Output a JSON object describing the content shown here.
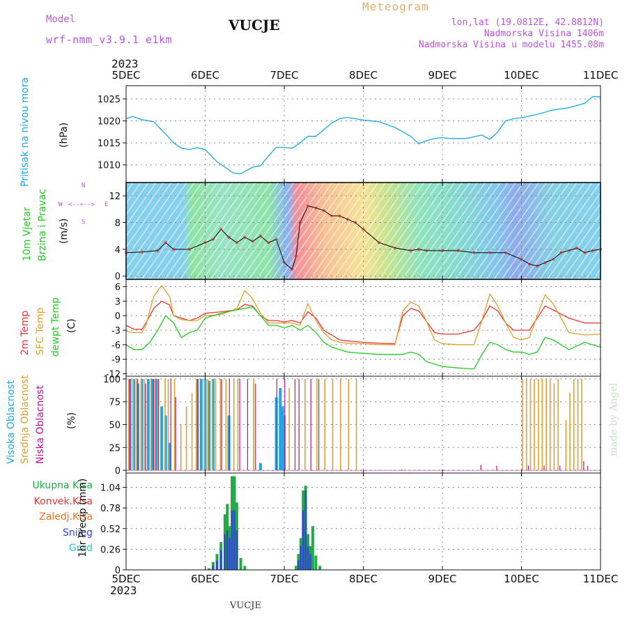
{
  "header": {
    "model_label": "Model",
    "model_name": "wrf-nmm_v3.9.1 e1km",
    "station": "VUCJE",
    "chart_title": "Meteogram",
    "coords": "lon,lat (19.0812E, 42.8812N)",
    "altitude": "Nadmorska Visina 1406m",
    "model_altitude": "Nadmorska Visina u modelu 1455.08m",
    "year_top": "2023",
    "year_bottom": "2023",
    "footer_station": "VUCJE",
    "credit": "made by Angel"
  },
  "colors": {
    "pressure": "#1ea8e6",
    "wind_speed": "#000000",
    "temp2m": "#ee3333",
    "sfc_temp": "#e0a030",
    "dewpoint": "#22cc22",
    "cloud_high": "#1ea8e6",
    "cloud_mid": "#e0a030",
    "cloud_low": "#bb1199",
    "total_precip": "#22aa44",
    "convective": "#ee3333",
    "freezing": "#f07020",
    "snow": "#3344dd",
    "hail": "#22cccc",
    "magenta_text": "#bb55dd",
    "orange_text": "#e0b070"
  },
  "x_axis": {
    "labels": [
      "5DEC",
      "6DEC",
      "7DEC",
      "8DEC",
      "9DEC",
      "10DEC",
      "11DEC"
    ]
  },
  "chart_data": [
    {
      "id": "pressure",
      "type": "line",
      "ylabel": "Pritisak na nivou mora",
      "unit": "(hPa)",
      "ylim": [
        1006,
        1028
      ],
      "yticks": [
        1010,
        1015,
        1020,
        1025
      ],
      "grid": true,
      "series": [
        {
          "x": [
            0,
            0.08,
            0.2,
            0.35,
            0.5,
            0.6,
            0.7,
            0.8,
            0.9,
            1.0,
            1.08,
            1.15,
            1.25,
            1.35,
            1.45,
            1.5,
            1.6,
            1.7,
            1.8,
            1.9,
            2.0,
            2.1,
            2.2,
            2.3,
            2.4,
            2.5,
            2.6,
            2.7,
            2.8,
            2.9,
            3.0,
            3.2,
            3.4,
            3.6,
            3.7,
            3.8,
            3.9,
            4.0,
            4.1,
            4.3,
            4.5,
            4.6,
            4.7,
            4.8,
            4.9,
            5.0,
            5.2,
            5.4,
            5.6,
            5.8,
            5.9,
            6.0
          ],
          "y": [
            1020.5,
            1021,
            1020.3,
            1019.8,
            1017,
            1015,
            1013.8,
            1013.5,
            1013.9,
            1013.5,
            1012,
            1010.7,
            1009.5,
            1008.2,
            1008,
            1008.5,
            1009.5,
            1009.8,
            1012,
            1014,
            1014,
            1013.8,
            1015,
            1016.5,
            1016.5,
            1018,
            1019.5,
            1020.5,
            1020.8,
            1020.5,
            1020.2,
            1019.8,
            1018.5,
            1016.5,
            1014.8,
            1015.5,
            1016,
            1016.2,
            1016,
            1016,
            1016.8,
            1015.8,
            1017.5,
            1020,
            1020.5,
            1020.7,
            1021.5,
            1022.5,
            1023,
            1024,
            1025.5,
            1025.5
          ]
        }
      ]
    },
    {
      "id": "wind",
      "type": "line",
      "ylabel": "10m Vjetar Brzina i Pravac",
      "unit": "(m/s)",
      "ylim": [
        -0.5,
        14
      ],
      "yticks": [
        0,
        4,
        8,
        12
      ],
      "grid": true,
      "compass": {
        "n": "N",
        "s": "S",
        "e": "E",
        "w": "W"
      },
      "series": [
        {
          "name": "speed",
          "x": [
            0,
            0.2,
            0.4,
            0.5,
            0.6,
            0.8,
            1.0,
            1.1,
            1.2,
            1.3,
            1.4,
            1.5,
            1.6,
            1.7,
            1.8,
            1.9,
            2.0,
            2.1,
            2.15,
            2.2,
            2.3,
            2.4,
            2.5,
            2.6,
            2.7,
            2.8,
            2.9,
            3.0,
            3.2,
            3.4,
            3.6,
            3.7,
            3.8,
            4.0,
            4.2,
            4.4,
            4.6,
            4.8,
            5.0,
            5.1,
            5.2,
            5.3,
            5.4,
            5.5,
            5.6,
            5.7,
            5.8,
            5.9,
            6.0
          ],
          "y": [
            3.5,
            3.6,
            3.8,
            5,
            4,
            4,
            5,
            5.5,
            7,
            5.8,
            5,
            5.8,
            5.2,
            6,
            5,
            5.5,
            2,
            1,
            3,
            8,
            10.5,
            10.2,
            9.8,
            9,
            9,
            8.5,
            8,
            7,
            5,
            4.2,
            3.8,
            4,
            3.8,
            3.8,
            3.8,
            3.5,
            3.5,
            3.5,
            2.5,
            1.8,
            1.5,
            2,
            2.5,
            3.5,
            3.8,
            4.2,
            3.5,
            3.8,
            4
          ]
        }
      ]
    },
    {
      "id": "temperature",
      "type": "line",
      "ylabel": "2m Temp / SFC Temp / dewpt Temp",
      "labels": [
        "2m Temp",
        "SFC Temp",
        "dewpt Temp"
      ],
      "unit": "(C)",
      "ylim": [
        -12.5,
        7.5
      ],
      "yticks": [
        -12,
        -9,
        -6,
        -3,
        0,
        3,
        6
      ],
      "grid": true,
      "series": [
        {
          "name": "2m Temp",
          "x": [
            0,
            0.1,
            0.2,
            0.25,
            0.35,
            0.45,
            0.55,
            0.6,
            0.7,
            0.8,
            0.9,
            1.0,
            1.2,
            1.4,
            1.5,
            1.6,
            1.7,
            1.8,
            1.9,
            2.0,
            2.1,
            2.2,
            2.3,
            2.4,
            2.5,
            2.6,
            2.7,
            2.8,
            3.0,
            3.2,
            3.4,
            3.5,
            3.6,
            3.7,
            3.8,
            3.9,
            4.0,
            4.2,
            4.4,
            4.5,
            4.6,
            4.7,
            4.8,
            4.9,
            5.0,
            5.1,
            5.2,
            5.3,
            5.4,
            5.6,
            5.8,
            6.0
          ],
          "y": [
            -2,
            -2.8,
            -2.8,
            -1.5,
            1.5,
            3,
            2.2,
            0,
            -0.5,
            -1,
            -0.5,
            0.5,
            0.8,
            1.2,
            2.3,
            2,
            0,
            -1,
            -1,
            -1.3,
            -1,
            -1.5,
            0.8,
            -0.5,
            -3,
            -4,
            -5,
            -5.2,
            -5.5,
            -5.7,
            -5.8,
            0,
            1.5,
            1,
            -1.2,
            -3.5,
            -3.8,
            -3.8,
            -3,
            -1,
            2,
            1,
            -1.5,
            -3,
            -3,
            -3,
            -0.5,
            2,
            1.2,
            -0.5,
            -1.5,
            -1.5
          ]
        },
        {
          "name": "SFC Temp",
          "x": [
            0,
            0.1,
            0.2,
            0.25,
            0.35,
            0.45,
            0.55,
            0.6,
            0.7,
            0.8,
            0.9,
            1.0,
            1.2,
            1.4,
            1.5,
            1.6,
            1.7,
            1.8,
            1.9,
            2.0,
            2.1,
            2.2,
            2.3,
            2.4,
            2.5,
            2.6,
            2.7,
            2.8,
            3.0,
            3.2,
            3.4,
            3.5,
            3.6,
            3.7,
            3.8,
            3.9,
            4.0,
            4.2,
            4.4,
            4.5,
            4.6,
            4.7,
            4.8,
            4.9,
            5.0,
            5.1,
            5.2,
            5.3,
            5.4,
            5.6,
            5.8,
            6.0
          ],
          "y": [
            -3.2,
            -3.5,
            -3.5,
            -2,
            4,
            6.2,
            4,
            0,
            -0.8,
            -1,
            -1,
            0,
            0.2,
            1.5,
            5.2,
            3.5,
            0.5,
            -1.5,
            -1.5,
            -1.5,
            -1.5,
            -2,
            2.5,
            -1,
            -3.5,
            -5,
            -5.5,
            -5.7,
            -5.8,
            -6,
            -6,
            1,
            2.8,
            2,
            -1.2,
            -5,
            -5.8,
            -6,
            -6,
            -1,
            4.5,
            2,
            -1.5,
            -4.5,
            -5,
            -4.5,
            0,
            4.3,
            2.5,
            -3.5,
            -4,
            -3.8
          ]
        },
        {
          "name": "dewpt Temp",
          "x": [
            0,
            0.1,
            0.2,
            0.3,
            0.4,
            0.5,
            0.6,
            0.7,
            0.8,
            0.9,
            1.0,
            1.2,
            1.4,
            1.5,
            1.6,
            1.7,
            1.8,
            1.9,
            2.0,
            2.1,
            2.2,
            2.3,
            2.4,
            2.5,
            2.6,
            2.8,
            3.0,
            3.2,
            3.4,
            3.5,
            3.6,
            3.7,
            3.8,
            3.9,
            4.0,
            4.2,
            4.4,
            4.5,
            4.6,
            4.7,
            4.8,
            4.9,
            5.0,
            5.1,
            5.2,
            5.3,
            5.4,
            5.6,
            5.8,
            6.0
          ],
          "y": [
            -6,
            -7,
            -7,
            -5.5,
            -3,
            0,
            -1.5,
            -4.5,
            -3.5,
            -3,
            -0.5,
            0.5,
            1.2,
            1.5,
            1.8,
            0,
            -2,
            -2,
            -2.5,
            -2,
            -3,
            -2,
            -3.5,
            -5.5,
            -6.5,
            -7.5,
            -7.8,
            -8,
            -8,
            -8,
            -7.5,
            -8,
            -9.5,
            -10,
            -10.5,
            -10.8,
            -11,
            -8,
            -5.5,
            -6,
            -7,
            -7.5,
            -7.5,
            -8,
            -7.5,
            -4.5,
            -5,
            -7,
            -5.5,
            -6.5
          ]
        }
      ]
    },
    {
      "id": "clouds",
      "type": "bar",
      "ylabel": "Visoka Oblacnost / Srednja Oblacnost / Niska Oblacnost",
      "labels": [
        "Visoka Oblacnost",
        "Srednja Oblacnost",
        "Niska Oblacnost"
      ],
      "unit": "(%)",
      "ylim": [
        -3,
        103
      ],
      "yticks": [
        0,
        25,
        50,
        75,
        100
      ],
      "grid": true,
      "series": [
        {
          "name": "Visoka",
          "x": [
            0.05,
            0.1,
            0.15,
            0.2,
            0.28,
            0.33,
            0.38,
            0.45,
            0.5,
            0.55,
            0.9,
            0.95,
            1.0,
            1.05,
            1.1,
            1.3,
            1.7,
            1.9,
            1.95,
            1.98,
            2.0
          ],
          "y": [
            100,
            100,
            95,
            100,
            100,
            100,
            100,
            70,
            60,
            30,
            100,
            100,
            100,
            98,
            100,
            60,
            8,
            80,
            90,
            70,
            60
          ]
        },
        {
          "name": "Srednja",
          "x": [
            0.02,
            0.08,
            0.12,
            0.18,
            0.22,
            0.3,
            0.35,
            0.4,
            0.48,
            0.52,
            0.6,
            0.68,
            0.75,
            0.82,
            0.88,
            0.98,
            1.02,
            1.08,
            1.12,
            1.18,
            1.25,
            1.35,
            1.4,
            1.6,
            2.05,
            2.25,
            2.4,
            2.5,
            2.6,
            2.7,
            2.8,
            2.9,
            5.0,
            5.05,
            5.1,
            5.15,
            5.2,
            5.25,
            5.3,
            5.35,
            5.4,
            5.45,
            5.55,
            5.6,
            5.65,
            5.7,
            5.75
          ],
          "y": [
            100,
            100,
            100,
            100,
            100,
            100,
            100,
            100,
            100,
            100,
            100,
            50,
            70,
            85,
            100,
            100,
            100,
            100,
            100,
            100,
            100,
            100,
            100,
            100,
            90,
            100,
            100,
            100,
            100,
            100,
            100,
            100,
            100,
            100,
            100,
            100,
            100,
            100,
            100,
            100,
            95,
            100,
            55,
            85,
            100,
            100,
            100
          ]
        },
        {
          "name": "Niska",
          "x": [
            0.06,
            0.16,
            0.26,
            0.36,
            0.42,
            0.58,
            0.64,
            0.92,
            1.22,
            1.32,
            1.45,
            1.55,
            1.65,
            1.92,
            2.02,
            2.15,
            2.2,
            2.35,
            2.45,
            3.5,
            4.5,
            4.7,
            5.1,
            5.3,
            5.5,
            5.8,
            5.85
          ],
          "y": [
            100,
            100,
            95,
            100,
            100,
            100,
            80,
            100,
            100,
            100,
            100,
            100,
            95,
            100,
            100,
            100,
            100,
            100,
            100,
            1,
            6,
            5,
            5,
            5,
            5,
            10,
            5
          ]
        }
      ]
    },
    {
      "id": "precip",
      "type": "bar",
      "ylabel": "1hr Precip (mm)",
      "labels": [
        "Ukupna Kisa",
        "Konvek.Kisa",
        "Zaledj.Kisa",
        "Snijeg",
        "Grad"
      ],
      "ylim": [
        0,
        1.22
      ],
      "yticks": [
        0,
        0.26,
        0.52,
        0.78,
        1.04
      ],
      "ytick_labels": [
        "0",
        "0.26",
        "0.52",
        "0.78",
        "1.04"
      ],
      "grid": true,
      "series": [
        {
          "name": "Ukupna Kisa",
          "x": [
            1.05,
            1.1,
            1.15,
            1.2,
            1.25,
            1.28,
            1.31,
            1.34,
            1.37,
            1.4,
            1.45,
            1.5,
            2.15,
            2.18,
            2.21,
            2.24,
            2.27,
            2.3,
            2.33,
            2.36,
            2.4,
            2.45
          ],
          "y": [
            0.02,
            0.1,
            0.2,
            0.35,
            0.7,
            0.83,
            0.55,
            1.18,
            1.18,
            0.85,
            0.15,
            0.05,
            0.05,
            0.2,
            0.4,
            1.0,
            1.06,
            0.45,
            0.3,
            0.55,
            0.18,
            0.05
          ]
        },
        {
          "name": "Snijeg",
          "x": [
            1.1,
            1.15,
            1.2,
            1.25,
            1.28,
            1.31,
            1.34,
            1.37,
            1.4,
            2.18,
            2.21,
            2.24,
            2.27,
            2.3,
            2.33
          ],
          "y": [
            0.05,
            0.12,
            0.25,
            0.45,
            0.5,
            0.4,
            0.75,
            0.75,
            0.5,
            0.12,
            0.3,
            0.75,
            1.0,
            0.3,
            0.2
          ]
        }
      ]
    }
  ]
}
